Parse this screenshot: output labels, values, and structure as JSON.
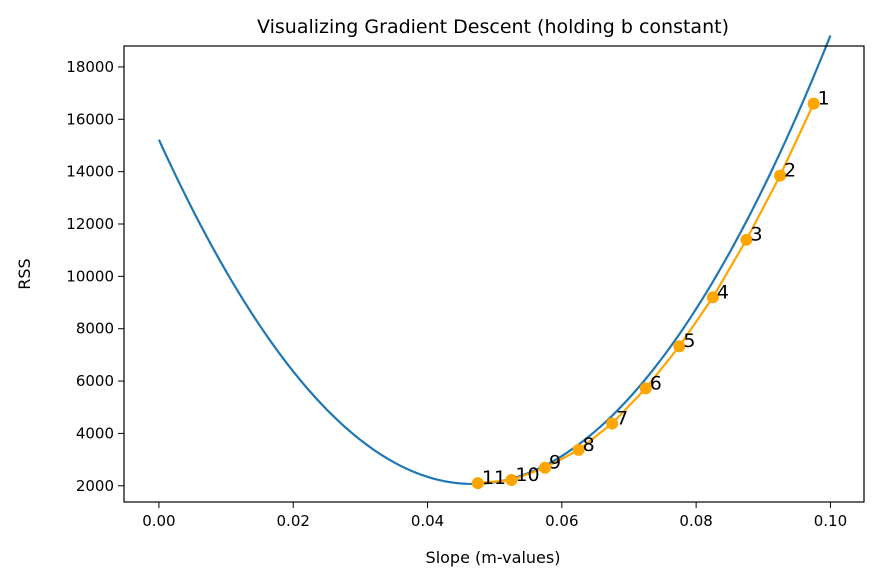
{
  "chart_data": {
    "type": "line",
    "title": "Visualizing Gradient Descent (holding b constant)",
    "xlabel": "Slope (m-values)",
    "ylabel": "RSS",
    "xlim": [
      -0.0052,
      0.105
    ],
    "ylim": [
      1380,
      18800
    ],
    "xticks": [
      0.0,
      0.02,
      0.04,
      0.06,
      0.08,
      0.1
    ],
    "xtick_labels": [
      "0.00",
      "0.02",
      "0.04",
      "0.06",
      "0.08",
      "0.10"
    ],
    "yticks": [
      2000,
      4000,
      6000,
      8000,
      10000,
      12000,
      14000,
      16000,
      18000
    ],
    "ytick_labels": [
      "2000",
      "4000",
      "6000",
      "8000",
      "10000",
      "12000",
      "14000",
      "16000",
      "18000"
    ],
    "grid": false,
    "series": [
      {
        "color": "#1f77b4",
        "curve": {
          "x_range": [
            0.0,
            0.1
          ],
          "vertex_x": 0.0467,
          "vertex_y": 2070,
          "a": 6030000
        }
      },
      {
        "color": "#ffa500",
        "marker": "circle",
        "x": [
          0.0975,
          0.0925,
          0.0875,
          0.0825,
          0.0775,
          0.0725,
          0.0675,
          0.0625,
          0.0575,
          0.0525,
          0.0475
        ],
        "y": [
          16600,
          13850,
          11400,
          9200,
          7330,
          5720,
          4380,
          3370,
          2690,
          2220,
          2100
        ],
        "labels": [
          "1",
          "2",
          "3",
          "4",
          "5",
          "6",
          "7",
          "8",
          "9",
          "10",
          "11"
        ]
      }
    ]
  }
}
